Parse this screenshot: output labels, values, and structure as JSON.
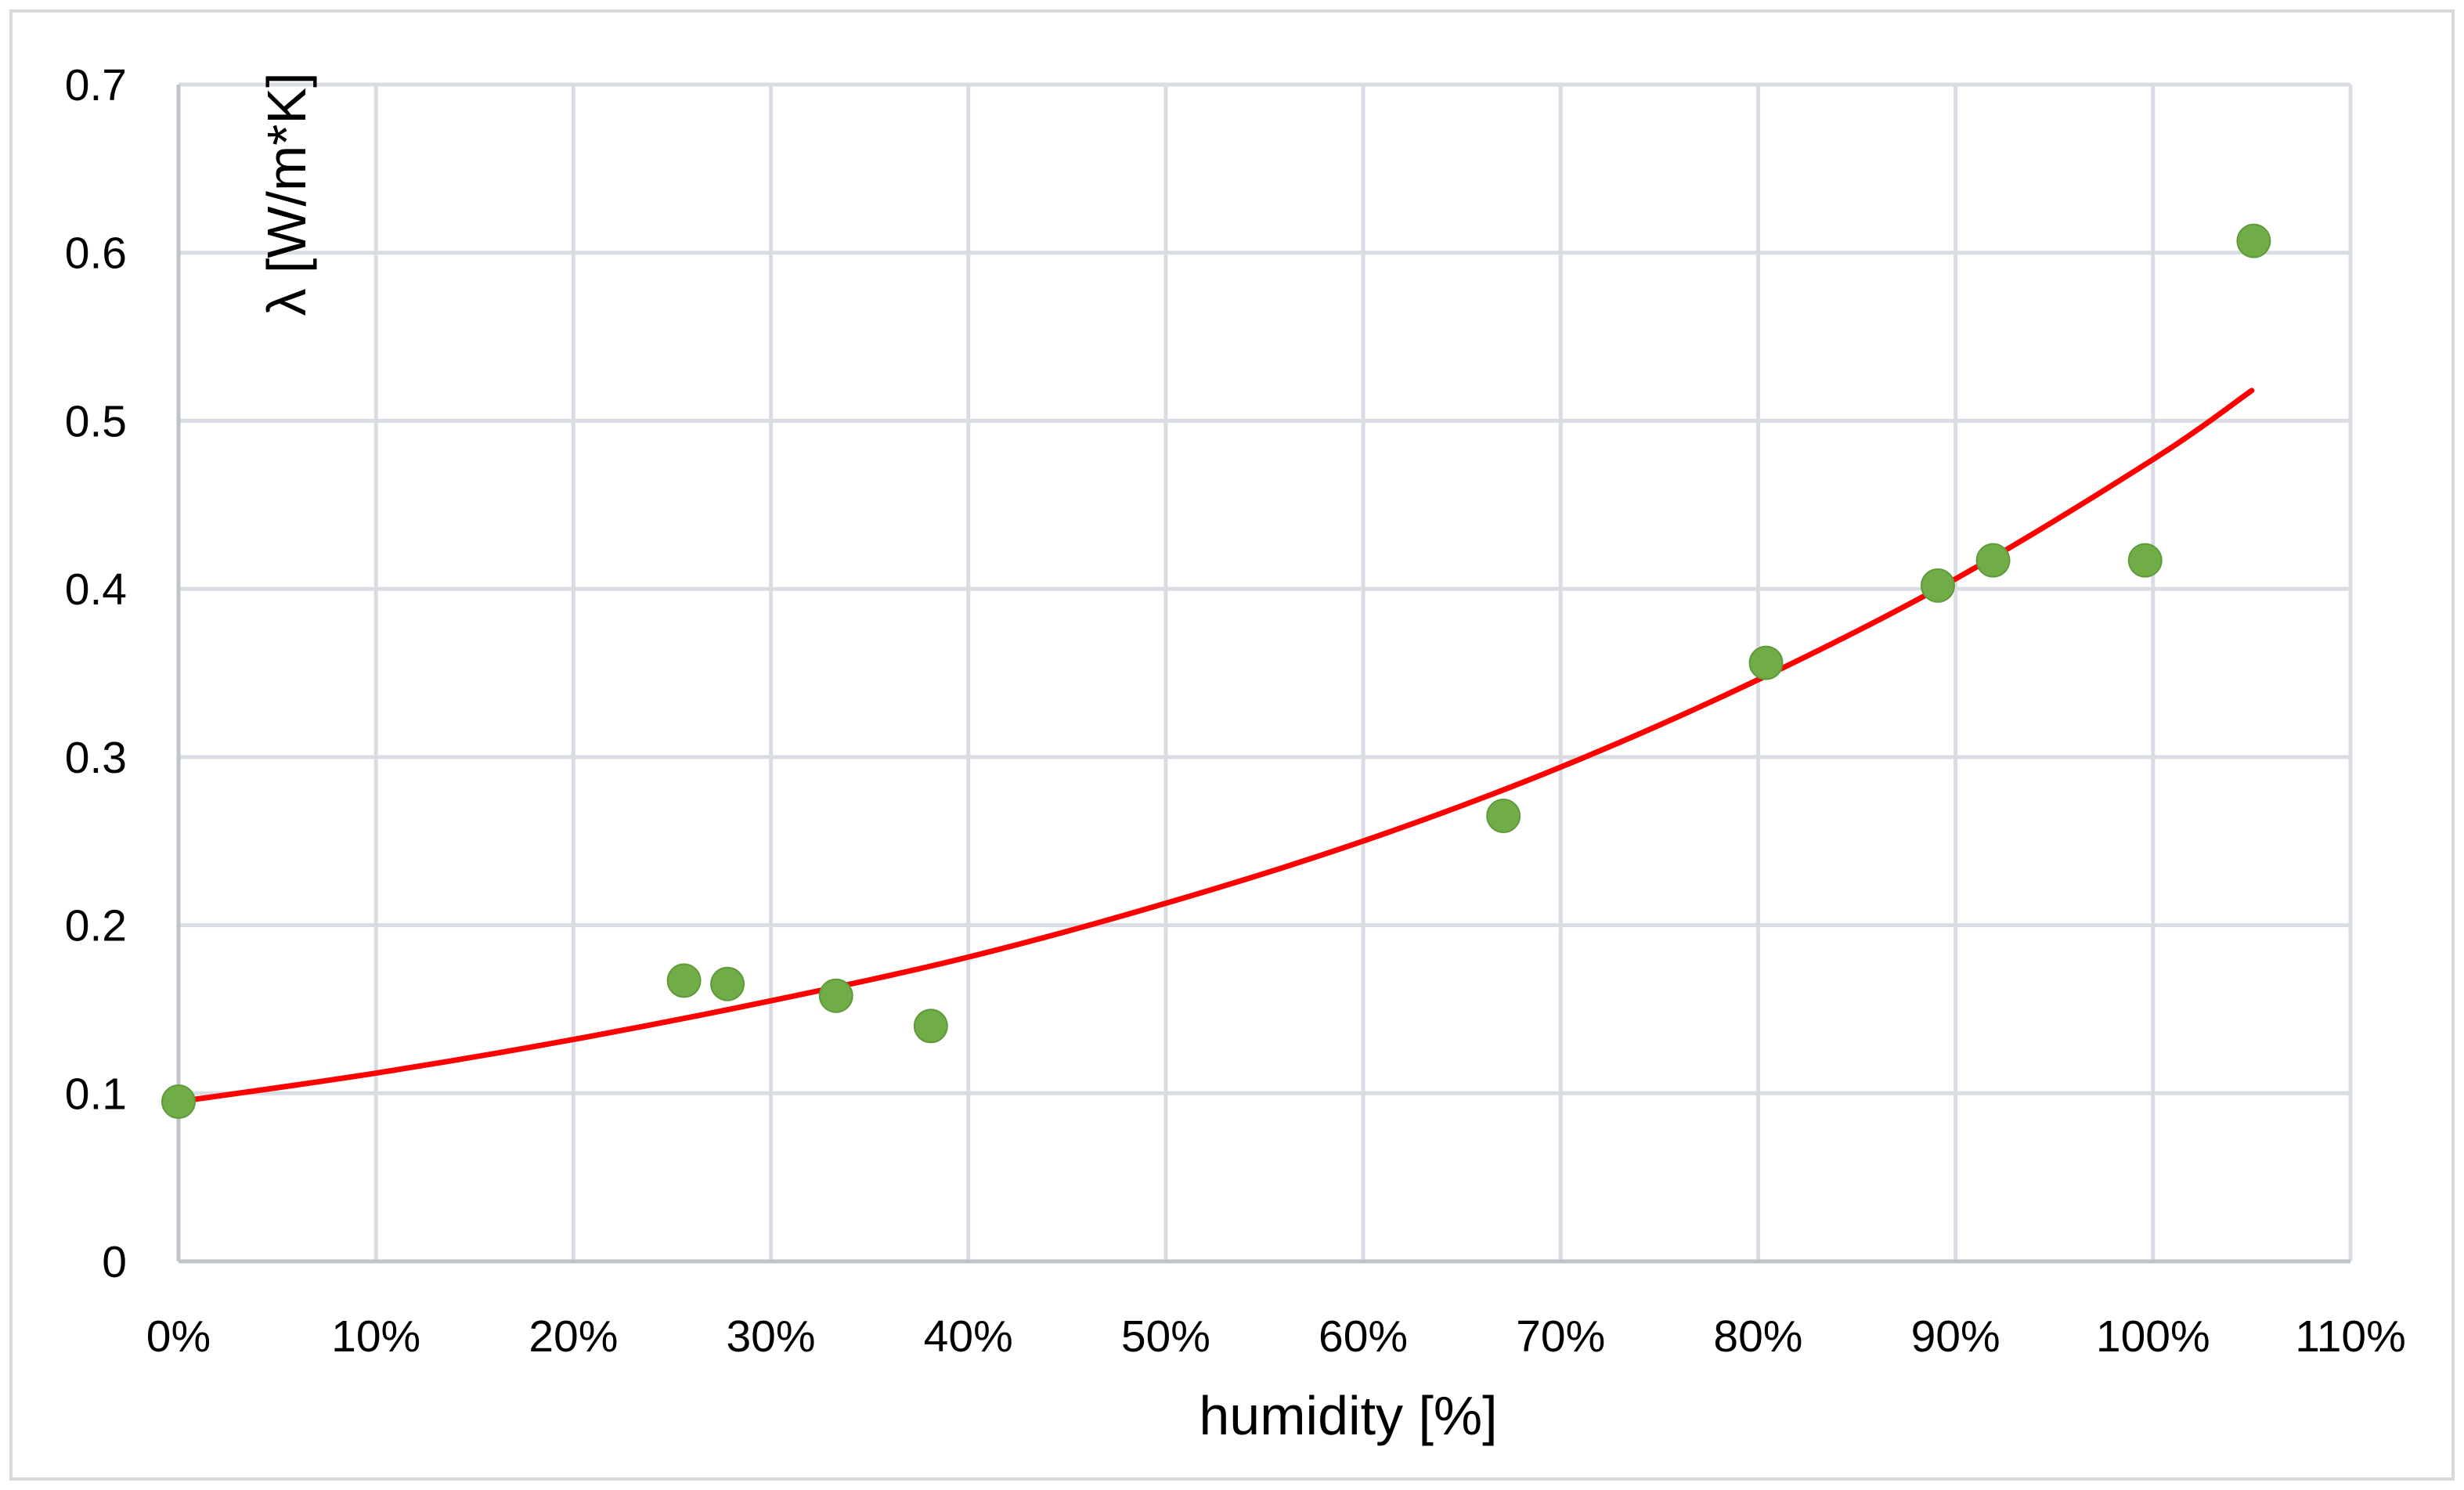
{
  "chart_data": {
    "type": "scatter",
    "title": "",
    "xlabel": "humidity [%]",
    "ylabel": "λ [W/m*K]",
    "xlim": [
      0,
      1.1
    ],
    "ylim": [
      0,
      0.7
    ],
    "x_ticks": [
      0,
      0.1,
      0.2,
      0.3,
      0.4,
      0.5,
      0.6,
      0.7,
      0.8,
      0.9,
      1.0,
      1.1
    ],
    "x_tick_labels": [
      "0%",
      "10%",
      "20%",
      "30%",
      "40%",
      "50%",
      "60%",
      "70%",
      "80%",
      "90%",
      "100%",
      "110%"
    ],
    "y_ticks": [
      0,
      0.1,
      0.2,
      0.3,
      0.4,
      0.5,
      0.6,
      0.7
    ],
    "y_tick_labels": [
      "0",
      "0.1",
      "0.2",
      "0.3",
      "0.4",
      "0.5",
      "0.6",
      "0.7"
    ],
    "grid": true,
    "legend": "none",
    "series": [
      {
        "kind": "points",
        "color": "#70ad47",
        "x": [
          0.0,
          0.256,
          0.278,
          0.333,
          0.381,
          0.671,
          0.804,
          0.891,
          0.919,
          0.996,
          1.051
        ],
        "y": [
          0.095,
          0.167,
          0.165,
          0.158,
          0.14,
          0.265,
          0.356,
          0.402,
          0.417,
          0.417,
          0.607
        ]
      },
      {
        "kind": "trendline",
        "color": "#ff0000",
        "x": [
          0.0,
          0.1,
          0.2,
          0.3,
          0.4,
          0.5,
          0.6,
          0.7,
          0.8,
          0.9,
          1.0,
          1.05
        ],
        "y": [
          0.095,
          0.112,
          0.132,
          0.155,
          0.181,
          0.213,
          0.25,
          0.294,
          0.346,
          0.406,
          0.477,
          0.518
        ]
      }
    ]
  }
}
